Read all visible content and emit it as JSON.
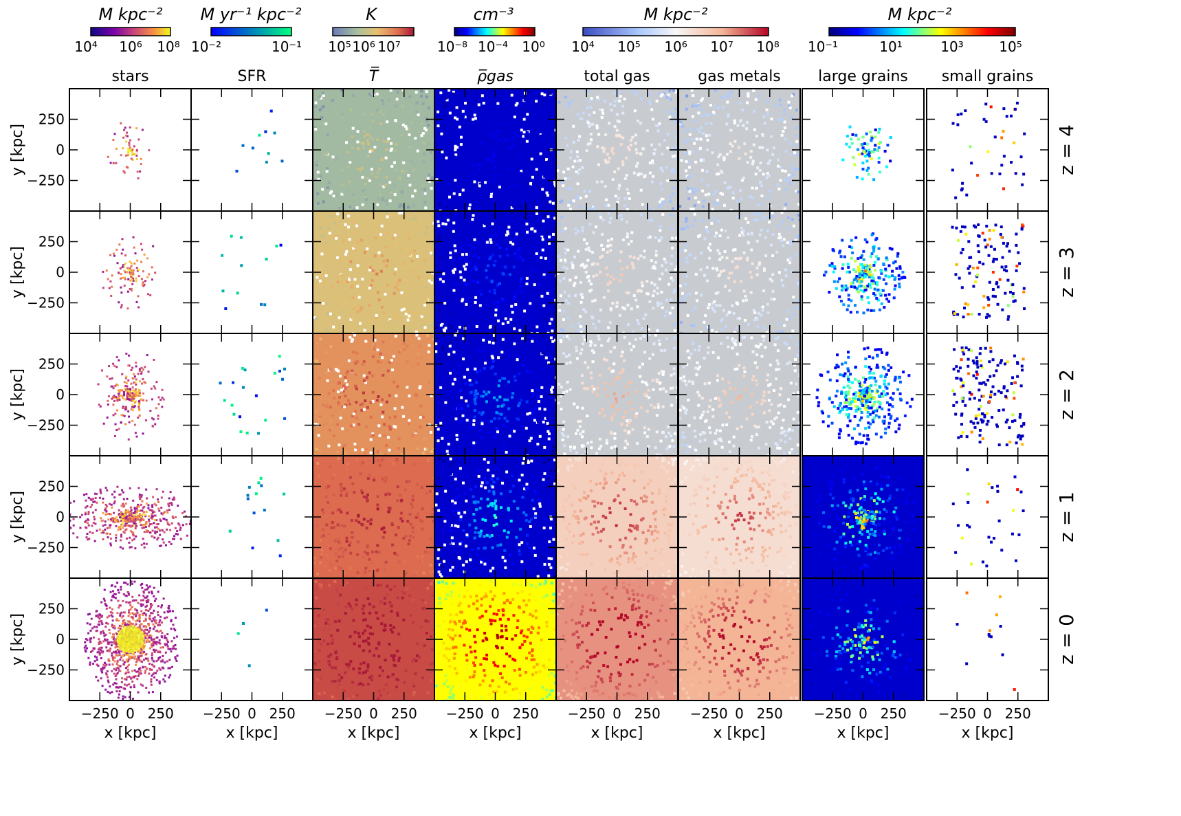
{
  "colorbars": [
    {
      "label": "M kpc⁻²",
      "ticks": [
        "10⁴",
        "10⁶",
        "10⁸"
      ],
      "cmap": "plasma"
    },
    {
      "label": "M yr⁻¹ kpc⁻²",
      "ticks": [
        "10⁻²",
        "10⁻¹"
      ],
      "cmap": "winter"
    },
    {
      "label": "K",
      "ticks": [
        "10⁵",
        "10⁶",
        "10⁷"
      ],
      "cmap": "temp"
    },
    {
      "label": "cm⁻³",
      "ticks": [
        "10⁻⁸",
        "10⁻⁴",
        "10⁰"
      ],
      "cmap": "jet"
    },
    {
      "label": "M kpc⁻²",
      "ticks": [
        "10⁴",
        "10⁵",
        "10⁶",
        "10⁷",
        "10⁸"
      ],
      "cmap": "coolwarm"
    },
    {
      "label": "M kpc⁻²",
      "ticks": [
        "10⁻¹",
        "10¹",
        "10³",
        "10⁵"
      ],
      "cmap": "jet"
    }
  ],
  "chart_data": {
    "type": "heatmap",
    "columns": [
      "stars",
      "SFR",
      "T̅",
      "ρ̅gas",
      "total gas",
      "gas metals",
      "large grains",
      "small grains"
    ],
    "rows": [
      "z = 4",
      "z = 3",
      "z = 2",
      "z = 1",
      "z = 0"
    ],
    "xlabel": "x [kpc]",
    "ylabel": "y [kpc]",
    "xticks": [
      "−250",
      "0",
      "250"
    ],
    "yticks": [
      "250",
      "0",
      "−250"
    ],
    "tick_values": [
      -250,
      0,
      250
    ],
    "xlim": [
      -500,
      500
    ],
    "ylim": [
      -500,
      500
    ],
    "colors": {
      "stars": [
        "#0d0887",
        "#7e03a8",
        "#cc4778",
        "#f89540",
        "#f0f921"
      ],
      "sfr": [
        "#0000ff",
        "#0080bf",
        "#00ff80"
      ],
      "temperature": [
        "#6a7ab8",
        "#a8c0a0",
        "#e8c070",
        "#e07050",
        "#a81838"
      ],
      "jet": [
        "#00007f",
        "#0000ff",
        "#00ffff",
        "#ffff00",
        "#ff0000",
        "#7f0000"
      ],
      "coolwarm": [
        "#3b4cc0",
        "#aac7fd",
        "#f7f7f7",
        "#f4b597",
        "#b40426"
      ]
    }
  }
}
